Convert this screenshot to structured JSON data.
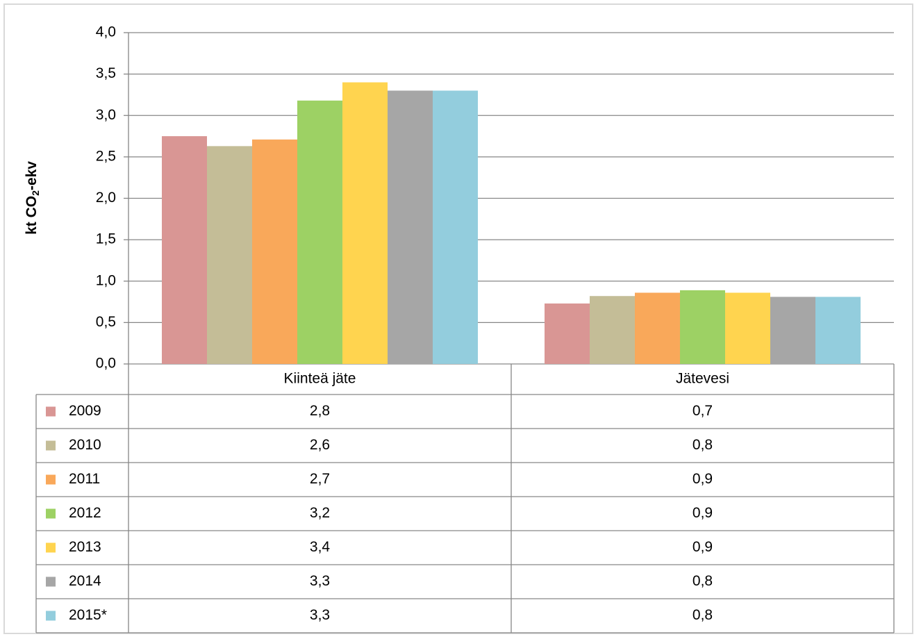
{
  "chart_data": {
    "type": "bar",
    "y_label": [
      "kt CO",
      "2",
      "-ekv"
    ],
    "categories": [
      "Kiinteä jäte",
      "Jätevesi"
    ],
    "series": [
      {
        "name": "2009",
        "color": "#d99694",
        "values": [
          2.75,
          0.73
        ],
        "value_labels": [
          "2,8",
          "0,7"
        ]
      },
      {
        "name": "2010",
        "color": "#c4bd97",
        "values": [
          2.63,
          0.82
        ],
        "value_labels": [
          "2,6",
          "0,8"
        ]
      },
      {
        "name": "2011",
        "color": "#f9a85a",
        "values": [
          2.71,
          0.86
        ],
        "value_labels": [
          "2,7",
          "0,9"
        ]
      },
      {
        "name": "2012",
        "color": "#9dd164",
        "values": [
          3.18,
          0.89
        ],
        "value_labels": [
          "3,2",
          "0,9"
        ]
      },
      {
        "name": "2013",
        "color": "#ffd44f",
        "values": [
          3.4,
          0.86
        ],
        "value_labels": [
          "3,4",
          "0,9"
        ]
      },
      {
        "name": "2014",
        "color": "#a6a6a6",
        "values": [
          3.3,
          0.81
        ],
        "value_labels": [
          "3,3",
          "0,8"
        ]
      },
      {
        "name": "2015*",
        "color": "#93cddd",
        "values": [
          3.3,
          0.81
        ],
        "value_labels": [
          "3,3",
          "0,8"
        ]
      }
    ],
    "ylim": [
      0,
      4
    ],
    "yticks": [
      {
        "value": 0,
        "label": "0,0"
      },
      {
        "value": 0.5,
        "label": "0,5"
      },
      {
        "value": 1,
        "label": "1,0"
      },
      {
        "value": 1.5,
        "label": "1,5"
      },
      {
        "value": 2,
        "label": "2,0"
      },
      {
        "value": 2.5,
        "label": "2,5"
      },
      {
        "value": 3,
        "label": "3,0"
      },
      {
        "value": 3.5,
        "label": "3,5"
      },
      {
        "value": 4,
        "label": "4,0"
      }
    ],
    "grid": true
  }
}
